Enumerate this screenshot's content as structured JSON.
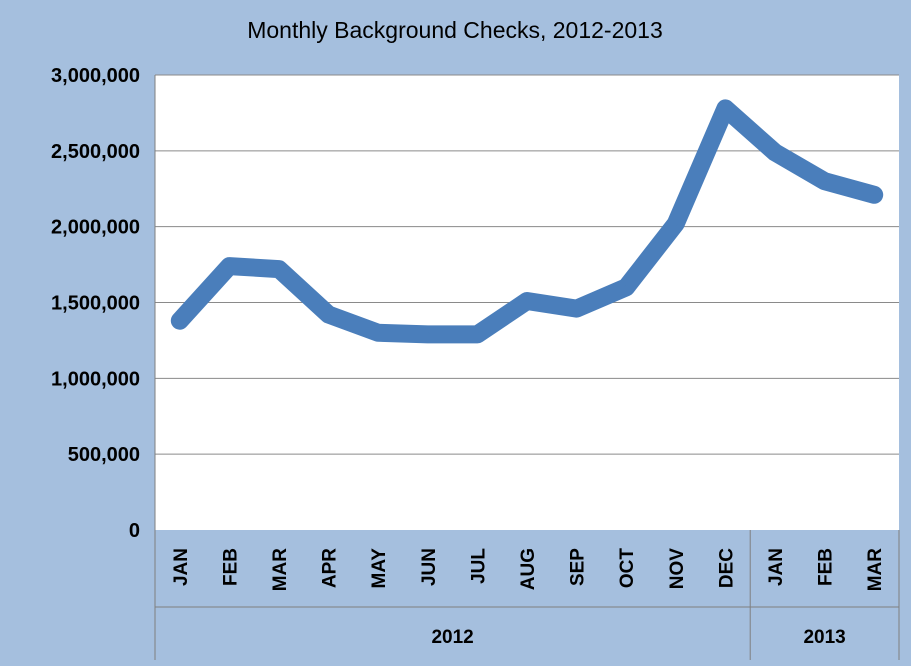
{
  "colors": {
    "background": "#a5bfde",
    "plot_area": "#ffffff",
    "series": "#4a7ebb",
    "gridline": "#8a8a8a",
    "text": "#000000"
  },
  "chart_data": {
    "type": "line",
    "title": "Monthly Background Checks, 2012-2013",
    "xlabel": "",
    "ylabel": "",
    "categories": [
      "JAN",
      "FEB",
      "MAR",
      "APR",
      "MAY",
      "JUN",
      "JUL",
      "AUG",
      "SEP",
      "OCT",
      "NOV",
      "DEC",
      "JAN",
      "FEB",
      "MAR"
    ],
    "groups": [
      {
        "label": "2012",
        "start": 0,
        "end": 11
      },
      {
        "label": "2013",
        "start": 12,
        "end": 14
      }
    ],
    "series": [
      {
        "values": [
          1380000,
          1740000,
          1720000,
          1420000,
          1300000,
          1290000,
          1290000,
          1510000,
          1460000,
          1600000,
          2020000,
          2780000,
          2490000,
          2300000,
          2210000
        ]
      }
    ],
    "ylim": [
      0,
      3000000
    ],
    "yticks": [
      0,
      500000,
      1000000,
      1500000,
      2000000,
      2500000,
      3000000
    ],
    "ytick_labels": [
      "0",
      "500,000",
      "1,000,000",
      "1,500,000",
      "2,000,000",
      "2,500,000",
      "3,000,000"
    ],
    "grid": true,
    "legend": "none"
  }
}
